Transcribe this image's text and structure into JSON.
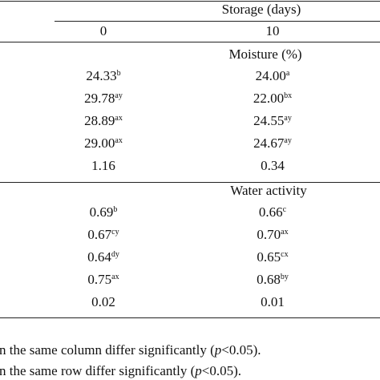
{
  "table": {
    "header": "Storage (days)",
    "columns": [
      "0",
      "10"
    ],
    "sections": [
      {
        "title": "Moisture (%)",
        "rows": [
          [
            {
              "value": "24.33",
              "sup": "b"
            },
            {
              "value": "24.00",
              "sup": "a"
            }
          ],
          [
            {
              "value": "29.78",
              "sup": "ay"
            },
            {
              "value": "22.00",
              "sup": "bx"
            }
          ],
          [
            {
              "value": "28.89",
              "sup": "ax"
            },
            {
              "value": "24.55",
              "sup": "ay"
            }
          ],
          [
            {
              "value": "29.00",
              "sup": "ax"
            },
            {
              "value": "24.67",
              "sup": "ay"
            }
          ],
          [
            {
              "value": "1.16"
            },
            {
              "value": "0.34"
            }
          ]
        ]
      },
      {
        "title": "Water activity",
        "rows": [
          [
            {
              "value": "0.69",
              "sup": "b"
            },
            {
              "value": "0.66",
              "sup": "c"
            }
          ],
          [
            {
              "value": "0.67",
              "sup": "cy"
            },
            {
              "value": "0.70",
              "sup": "ax"
            }
          ],
          [
            {
              "value": "0.64",
              "sup": "dy"
            },
            {
              "value": "0.65",
              "sup": "cx"
            }
          ],
          [
            {
              "value": "0.75",
              "sup": "ax"
            },
            {
              "value": "0.68",
              "sup": "by"
            }
          ],
          [
            {
              "value": "0.02"
            },
            {
              "value": "0.01"
            }
          ]
        ]
      }
    ]
  },
  "footnotes": [
    {
      "before": "n the same column differ significantly (",
      "italic": "p",
      "after": "<0.05)."
    },
    {
      "before": "n the same row differ significantly (",
      "italic": "p",
      "after": "<0.05)."
    }
  ]
}
